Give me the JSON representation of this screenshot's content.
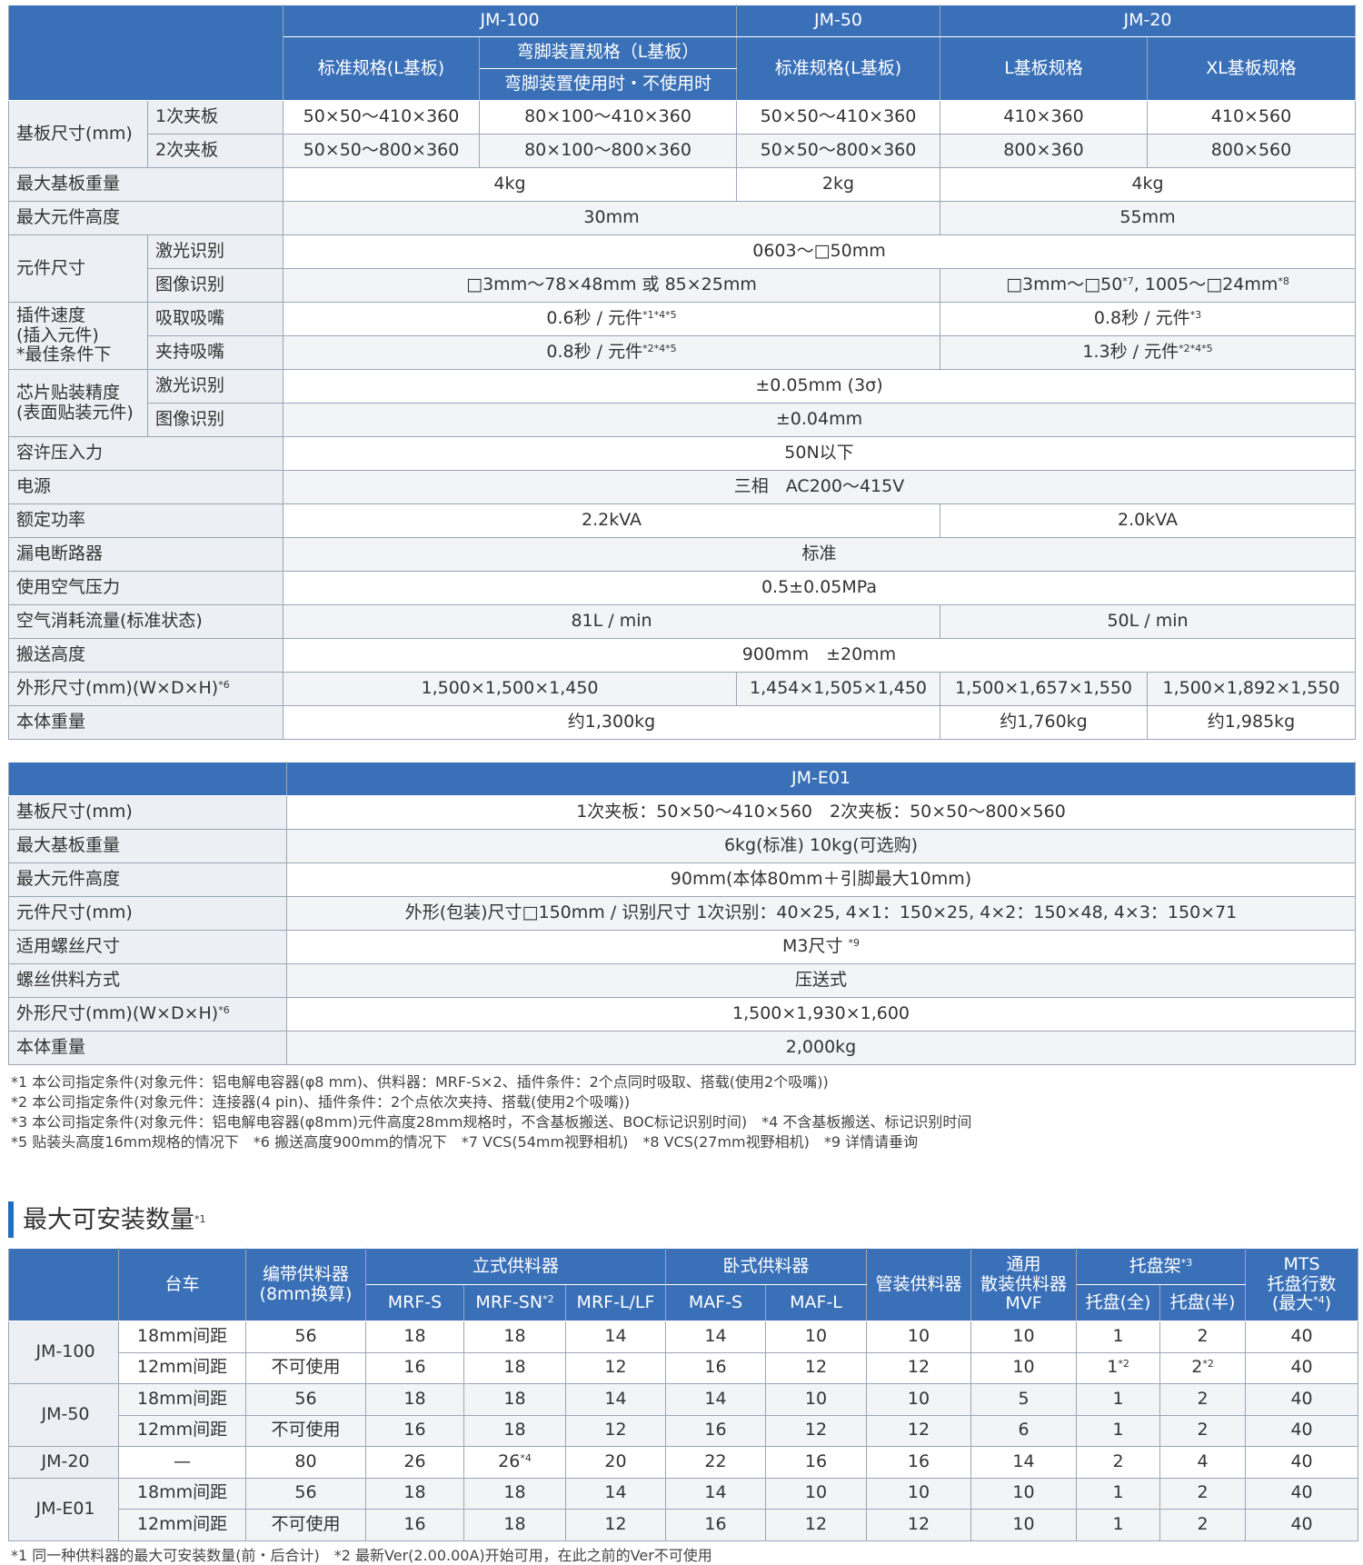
{
  "spec": {
    "header": [
      [
        "JM-100",
        "JM-50",
        "JM-20"
      ],
      [
        "标准规格(L基板)",
        "弯脚装置规格（L基板）",
        "标准规格(L基板)",
        "L基板规格",
        "XL基板规格"
      ],
      [
        "弯脚装置使用时・不使用时"
      ]
    ],
    "rows": [
      [
        "基板尺寸(mm)",
        "1次夹板",
        "50×50～410×360",
        "80×100～410×360",
        "50×50～410×360",
        "410×360",
        "410×560"
      ],
      [
        "2次夹板",
        "50×50～800×360",
        "80×100～800×360",
        "50×50～800×360",
        "800×360",
        "800×560"
      ],
      [
        "最大基板重量",
        "4kg",
        "2kg",
        "4kg"
      ],
      [
        "最大元件高度",
        "30mm",
        "55mm"
      ],
      [
        "元件尺寸",
        "激光识别",
        "0603～□50mm"
      ],
      [
        "图像识别",
        "□3mm～78×48mm 或 85×25mm",
        [
          "□3mm～□50",
          "*7",
          ", 1005～□24mm",
          "*8"
        ]
      ],
      [
        "插件速度\n(插入元件)\n*最佳条件下",
        "吸取吸嘴",
        [
          "0.6秒 / 元件",
          "*1*4*5"
        ],
        [
          "0.8秒 / 元件",
          "*3"
        ]
      ],
      [
        "夹持吸嘴",
        [
          "0.8秒 / 元件",
          "*2*4*5"
        ],
        [
          "1.3秒 / 元件",
          "*2*4*5"
        ]
      ],
      [
        "芯片贴装精度\n(表面贴装元件)",
        "激光识别",
        "±0.05mm (3σ)"
      ],
      [
        "图像识别",
        "±0.04mm"
      ],
      [
        "容许压入力",
        "50N以下"
      ],
      [
        "电源",
        "三相　AC200～415V"
      ],
      [
        "额定功率",
        "2.2kVA",
        "2.0kVA"
      ],
      [
        "漏电断路器",
        "标准"
      ],
      [
        "使用空气压力",
        "0.5±0.05MPa"
      ],
      [
        "空气消耗流量(标准状态)",
        "81L / min",
        "50L / min"
      ],
      [
        "搬送高度",
        "900mm　±20mm"
      ],
      [
        [
          "外形尺寸(mm)(W×D×H)",
          "*6"
        ],
        "1,500×1,500×1,450",
        "1,454×1,505×1,450",
        "1,500×1,657×1,550",
        "1,500×1,892×1,550"
      ],
      [
        "本体重量",
        "约1,300kg",
        "约1,760kg",
        "约1,985kg"
      ]
    ]
  },
  "e01": {
    "header": "JM-E01",
    "rows": [
      [
        "基板尺寸(mm)",
        "1次夹板：50×50～410×560　2次夹板：50×50～800×560"
      ],
      [
        "最大基板重量",
        "6kg(标准)  10kg(可选购)"
      ],
      [
        "最大元件高度",
        "90mm(本体80mm＋引脚最大10mm)"
      ],
      [
        "元件尺寸(mm)",
        "外形(包装)尺寸□150mm / 识别尺寸 1次识别：40×25, 4×1：150×25, 4×2：150×48, 4×3：150×71"
      ],
      [
        "适用螺丝尺寸",
        [
          "M3尺寸 ",
          "*9"
        ]
      ],
      [
        "螺丝供料方式",
        "压送式"
      ],
      [
        [
          "外形尺寸(mm)(W×D×H)",
          "*6"
        ],
        "1,500×1,930×1,600"
      ],
      [
        "本体重量",
        "2,000kg"
      ]
    ]
  },
  "notes": [
    "*1 本公司指定条件(对象元件：铝电解电容器(φ8 mm)、供料器：MRF-S×2、插件条件：2个点同时吸取、搭载(使用2个吸嘴))",
    "*2 本公司指定条件(对象元件：连接器(4 pin)、插件条件：2个点依次夹持、搭载(使用2个吸嘴))",
    "*3 本公司指定条件(对象元件：铝电解电容器(φ8mm)元件高度28mm规格时，不含基板搬送、BOC标记识别时间)　*4 不含基板搬送、标记识别时间",
    "*5 贴装头高度16mm规格的情况下　*6 搬送高度900mm的情况下　*7 VCS(54mm视野相机)　*8 VCS(27mm视野相机)　*9 详情请垂询"
  ],
  "section_title": [
    "最大可安装数量",
    "*1"
  ],
  "capacity": {
    "header": [
      [
        "台车",
        "编带供料器\n(8mm换算)",
        "立式供料器",
        "卧式供料器",
        "管装供料器",
        "通用\n散装供料器\nMVF",
        [
          "托盘架",
          "*3"
        ],
        [
          "MTS\n托盘行数\n(最大",
          "*4",
          ")"
        ]
      ],
      [
        "MRF-S",
        [
          "MRF-SN",
          "*2"
        ],
        "MRF-L/LF",
        "MAF-S",
        "MAF-L",
        "托盘(全)",
        "托盘(半)"
      ]
    ],
    "groups": [
      {
        "model": "JM-100",
        "rows": [
          [
            "18mm间距",
            56,
            18,
            18,
            14,
            14,
            10,
            10,
            10,
            1,
            2,
            40
          ],
          [
            "12mm间距",
            "不可使用",
            16,
            18,
            12,
            16,
            12,
            12,
            10,
            [
              "1",
              "*2"
            ],
            [
              "2",
              "*2"
            ],
            40
          ]
        ]
      },
      {
        "model": "JM-50",
        "rows": [
          [
            "18mm间距",
            56,
            18,
            18,
            14,
            14,
            10,
            10,
            5,
            1,
            2,
            40
          ],
          [
            "12mm间距",
            "不可使用",
            16,
            18,
            12,
            16,
            12,
            12,
            6,
            1,
            2,
            40
          ]
        ]
      },
      {
        "model": "JM-20",
        "rows": [
          [
            "—",
            80,
            26,
            [
              "26",
              "*4"
            ],
            20,
            22,
            16,
            16,
            14,
            2,
            4,
            40
          ]
        ]
      },
      {
        "model": "JM-E01",
        "rows": [
          [
            "18mm间距",
            56,
            18,
            18,
            14,
            14,
            10,
            10,
            10,
            1,
            2,
            40
          ],
          [
            "12mm间距",
            "不可使用",
            16,
            18,
            12,
            16,
            12,
            12,
            10,
            1,
            2,
            40
          ]
        ]
      }
    ]
  },
  "footnote": "*1 同一种供料器的最大可安装数量(前・后合计)　*2 最新Ver(2.00.00A)开始可用，在此之前的Ver不可使用"
}
